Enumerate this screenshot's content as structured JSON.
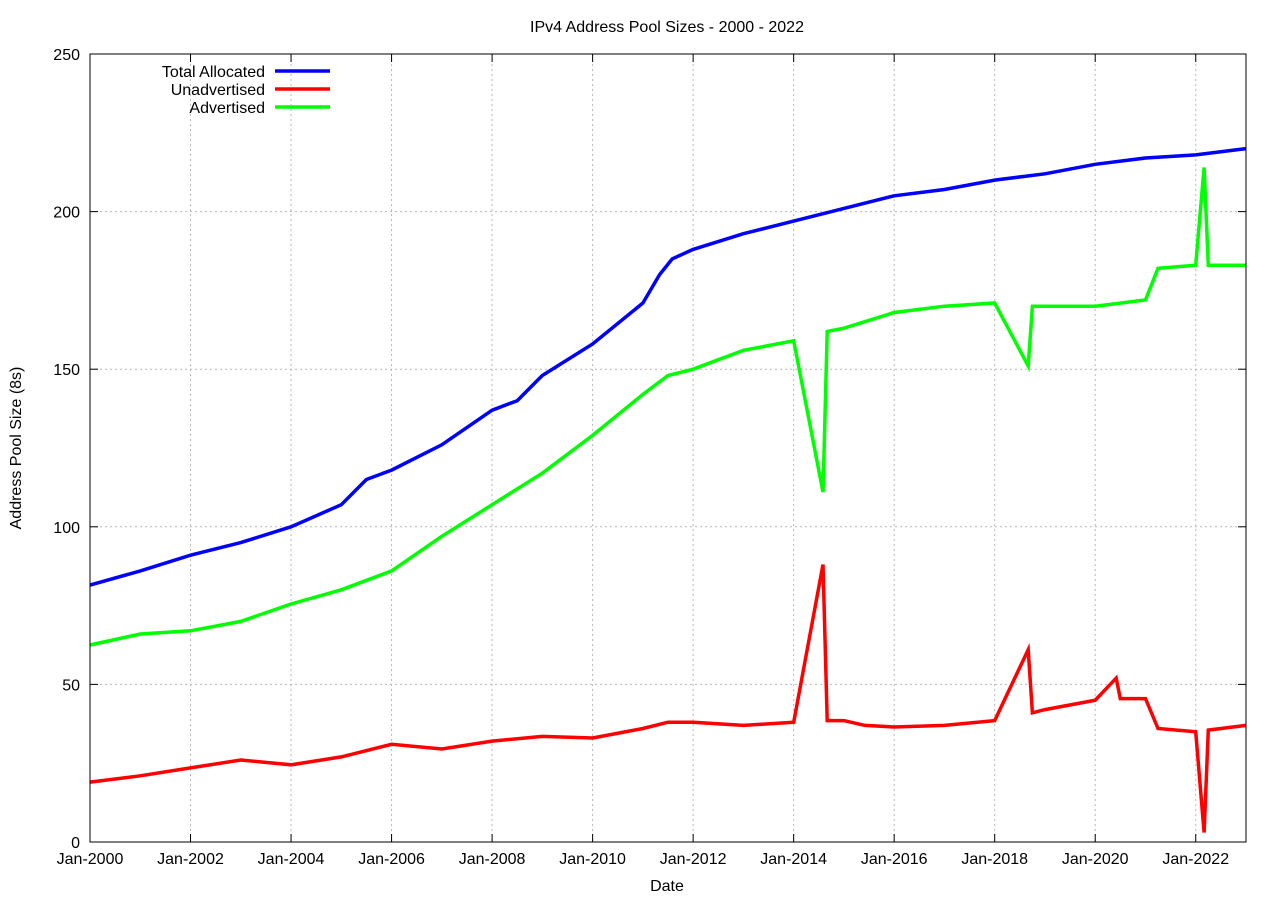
{
  "chart_data": {
    "type": "line",
    "title": "IPv4 Address Pool Sizes - 2000 - 2022",
    "xlabel": "Date",
    "ylabel": "Address Pool Size (8s)",
    "xlim": [
      "2000-01",
      "2023-01"
    ],
    "ylim": [
      0,
      250
    ],
    "grid": true,
    "legend_position": "top-left",
    "x_ticks": [
      "Jan-2000",
      "Jan-2002",
      "Jan-2004",
      "Jan-2006",
      "Jan-2008",
      "Jan-2010",
      "Jan-2012",
      "Jan-2014",
      "Jan-2016",
      "Jan-2018",
      "Jan-2020",
      "Jan-2022"
    ],
    "y_ticks": [
      0,
      50,
      100,
      150,
      200,
      250
    ],
    "series": [
      {
        "name": "Total Allocated",
        "color": "#0000ff",
        "points": [
          [
            "2000-01",
            81.5
          ],
          [
            "2001-01",
            86
          ],
          [
            "2002-01",
            91
          ],
          [
            "2003-01",
            95
          ],
          [
            "2004-01",
            100
          ],
          [
            "2005-01",
            107
          ],
          [
            "2005-07",
            115
          ],
          [
            "2006-01",
            118
          ],
          [
            "2007-01",
            126
          ],
          [
            "2008-01",
            137
          ],
          [
            "2008-07",
            140
          ],
          [
            "2009-01",
            148
          ],
          [
            "2010-01",
            158
          ],
          [
            "2011-01",
            171
          ],
          [
            "2011-05",
            180
          ],
          [
            "2011-08",
            185
          ],
          [
            "2012-01",
            188
          ],
          [
            "2013-01",
            193
          ],
          [
            "2014-01",
            197
          ],
          [
            "2015-01",
            201
          ],
          [
            "2016-01",
            205
          ],
          [
            "2017-01",
            207
          ],
          [
            "2018-01",
            210
          ],
          [
            "2019-01",
            212
          ],
          [
            "2020-01",
            215
          ],
          [
            "2021-01",
            217
          ],
          [
            "2022-01",
            218
          ],
          [
            "2023-01",
            220
          ]
        ]
      },
      {
        "name": "Unadvertised",
        "color": "#ff0000",
        "points": [
          [
            "2000-01",
            19
          ],
          [
            "2001-01",
            21
          ],
          [
            "2002-01",
            23.5
          ],
          [
            "2003-01",
            26
          ],
          [
            "2004-01",
            24.5
          ],
          [
            "2005-01",
            27
          ],
          [
            "2006-01",
            31
          ],
          [
            "2007-01",
            29.5
          ],
          [
            "2008-01",
            32
          ],
          [
            "2009-01",
            33.5
          ],
          [
            "2010-01",
            33
          ],
          [
            "2011-01",
            36
          ],
          [
            "2011-07",
            38
          ],
          [
            "2012-01",
            38
          ],
          [
            "2013-01",
            37
          ],
          [
            "2014-01",
            38
          ],
          [
            "2014-08",
            88
          ],
          [
            "2014-09",
            38.5
          ],
          [
            "2015-01",
            38.5
          ],
          [
            "2015-06",
            37
          ],
          [
            "2016-01",
            36.5
          ],
          [
            "2017-01",
            37
          ],
          [
            "2018-01",
            38.5
          ],
          [
            "2018-09",
            61
          ],
          [
            "2018-10",
            41
          ],
          [
            "2019-01",
            42
          ],
          [
            "2020-01",
            45
          ],
          [
            "2020-06",
            52
          ],
          [
            "2020-07",
            45.5
          ],
          [
            "2021-01",
            45.5
          ],
          [
            "2021-04",
            36
          ],
          [
            "2022-01",
            35
          ],
          [
            "2022-03",
            3
          ],
          [
            "2022-04",
            35.5
          ],
          [
            "2023-01",
            37
          ]
        ]
      },
      {
        "name": "Advertised",
        "color": "#00ff00",
        "points": [
          [
            "2000-01",
            62.5
          ],
          [
            "2001-01",
            66
          ],
          [
            "2002-01",
            67
          ],
          [
            "2003-01",
            70
          ],
          [
            "2004-01",
            75.5
          ],
          [
            "2005-01",
            80
          ],
          [
            "2006-01",
            86
          ],
          [
            "2007-01",
            97
          ],
          [
            "2008-01",
            107
          ],
          [
            "2009-01",
            117
          ],
          [
            "2010-01",
            129
          ],
          [
            "2011-01",
            142
          ],
          [
            "2011-07",
            148
          ],
          [
            "2012-01",
            150
          ],
          [
            "2013-01",
            156
          ],
          [
            "2014-01",
            159
          ],
          [
            "2014-08",
            111
          ],
          [
            "2014-09",
            162
          ],
          [
            "2015-01",
            163
          ],
          [
            "2016-01",
            168
          ],
          [
            "2017-01",
            170
          ],
          [
            "2018-01",
            171
          ],
          [
            "2018-09",
            151
          ],
          [
            "2018-10",
            170
          ],
          [
            "2019-01",
            170
          ],
          [
            "2020-01",
            170
          ],
          [
            "2021-01",
            172
          ],
          [
            "2021-04",
            182
          ],
          [
            "2022-01",
            183
          ],
          [
            "2022-03",
            214
          ],
          [
            "2022-04",
            183
          ],
          [
            "2023-01",
            183
          ]
        ]
      }
    ]
  }
}
